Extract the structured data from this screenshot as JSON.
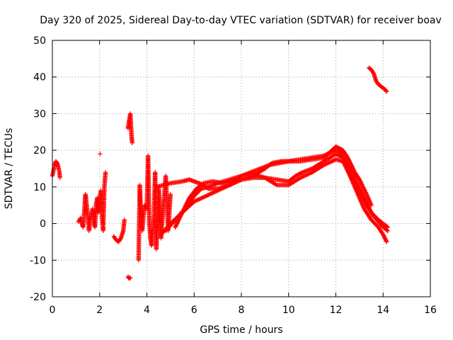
{
  "chart_data": {
    "type": "scatter",
    "title": "Day 320 of 2025, Sidereal Day-to-day VTEC variation (SDTVAR) for receiver boav",
    "xlabel": "GPS time / hours",
    "ylabel": "SDTVAR / TECUs",
    "xlim": [
      0,
      16
    ],
    "ylim": [
      -20,
      50
    ],
    "xticks": [
      0,
      2,
      4,
      6,
      8,
      10,
      12,
      14,
      16
    ],
    "yticks": [
      -20,
      -10,
      0,
      10,
      20,
      30,
      40,
      50
    ],
    "grid": true,
    "marker": "+",
    "color": "#ff0000",
    "series": [
      {
        "name": "cluster-0",
        "points": [
          [
            0.0,
            13
          ],
          [
            0.05,
            14.5
          ],
          [
            0.1,
            16
          ],
          [
            0.15,
            17
          ],
          [
            0.2,
            16.5
          ],
          [
            0.25,
            15.5
          ],
          [
            0.3,
            14
          ],
          [
            0.32,
            12.5
          ]
        ]
      },
      {
        "name": "cluster-1",
        "points": [
          [
            1.1,
            0.5
          ],
          [
            1.2,
            1.5
          ],
          [
            1.25,
            0
          ],
          [
            1.3,
            -1
          ],
          [
            1.35,
            3
          ],
          [
            1.4,
            8
          ],
          [
            1.45,
            5
          ],
          [
            1.5,
            2
          ],
          [
            1.55,
            -2
          ],
          [
            1.6,
            1
          ],
          [
            1.7,
            4
          ],
          [
            1.75,
            1
          ],
          [
            1.8,
            -1
          ],
          [
            1.85,
            5
          ],
          [
            1.9,
            7
          ],
          [
            1.95,
            3
          ],
          [
            2.0,
            6
          ],
          [
            2.05,
            9
          ],
          [
            2.1,
            2
          ],
          [
            2.15,
            -2
          ],
          [
            2.2,
            10
          ],
          [
            2.25,
            14
          ]
        ]
      },
      {
        "name": "cluster-1b",
        "points": [
          [
            2.02,
            19
          ]
        ]
      },
      {
        "name": "cluster-2",
        "points": [
          [
            2.6,
            -3.5
          ],
          [
            2.7,
            -4.5
          ],
          [
            2.8,
            -5
          ],
          [
            2.9,
            -4
          ],
          [
            3.0,
            -2
          ],
          [
            3.05,
            1
          ]
        ]
      },
      {
        "name": "cluster-3",
        "points": [
          [
            3.2,
            -14.5
          ],
          [
            3.25,
            -15
          ],
          [
            3.3,
            -14.8
          ]
        ]
      },
      {
        "name": "cluster-4",
        "points": [
          [
            3.2,
            26
          ],
          [
            3.25,
            28
          ],
          [
            3.3,
            30
          ],
          [
            3.35,
            24
          ],
          [
            3.38,
            22
          ]
        ]
      },
      {
        "name": "cluster-5",
        "points": [
          [
            3.65,
            -10
          ],
          [
            3.7,
            10.5
          ],
          [
            3.75,
            3
          ],
          [
            3.8,
            -2
          ],
          [
            3.9,
            5
          ],
          [
            4.0,
            4
          ],
          [
            4.05,
            18.5
          ],
          [
            4.1,
            1
          ],
          [
            4.15,
            -4
          ],
          [
            4.2,
            -6
          ],
          [
            4.3,
            2
          ],
          [
            4.35,
            14
          ],
          [
            4.4,
            -7
          ],
          [
            4.5,
            10
          ],
          [
            4.6,
            -4
          ],
          [
            4.7,
            5
          ],
          [
            4.8,
            13
          ],
          [
            4.9,
            -2
          ],
          [
            5.0,
            8
          ]
        ]
      },
      {
        "name": "band-a",
        "points": [
          [
            4.4,
            10
          ],
          [
            5.0,
            11
          ],
          [
            5.5,
            11.5
          ],
          [
            5.8,
            12
          ],
          [
            6.0,
            11.5
          ],
          [
            6.3,
            10.8
          ],
          [
            6.6,
            9.5
          ],
          [
            7.0,
            9.5
          ],
          [
            7.5,
            10.5
          ],
          [
            8.0,
            12
          ],
          [
            8.5,
            13
          ],
          [
            9.0,
            15
          ],
          [
            9.3,
            16.5
          ],
          [
            9.7,
            17
          ],
          [
            10.0,
            17
          ],
          [
            10.5,
            17.5
          ],
          [
            11.0,
            18
          ],
          [
            11.5,
            18.5
          ],
          [
            11.8,
            19.5
          ],
          [
            12.0,
            20
          ],
          [
            12.2,
            19.5
          ],
          [
            12.4,
            17
          ],
          [
            12.6,
            13
          ],
          [
            12.8,
            10
          ],
          [
            13.0,
            7
          ],
          [
            13.2,
            4
          ],
          [
            13.5,
            1
          ],
          [
            13.8,
            -1
          ],
          [
            14.0,
            -3
          ],
          [
            14.15,
            -5
          ]
        ]
      },
      {
        "name": "band-b",
        "points": [
          [
            4.6,
            -3
          ],
          [
            5.0,
            0
          ],
          [
            5.5,
            3
          ],
          [
            6.0,
            6
          ],
          [
            6.5,
            7.5
          ],
          [
            7.0,
            9
          ],
          [
            7.5,
            10.5
          ],
          [
            8.0,
            12
          ],
          [
            8.5,
            12.5
          ],
          [
            9.0,
            12.5
          ],
          [
            9.5,
            12
          ],
          [
            10.0,
            11.5
          ],
          [
            10.3,
            13
          ],
          [
            10.6,
            14
          ],
          [
            11.0,
            15
          ],
          [
            11.5,
            17
          ],
          [
            12.0,
            19
          ],
          [
            12.3,
            18
          ],
          [
            12.6,
            15
          ],
          [
            12.9,
            11
          ],
          [
            13.2,
            7
          ],
          [
            13.5,
            3
          ],
          [
            13.8,
            1
          ],
          [
            14.2,
            -1
          ]
        ]
      },
      {
        "name": "band-c",
        "points": [
          [
            4.8,
            -2
          ],
          [
            5.2,
            1
          ],
          [
            5.6,
            4
          ],
          [
            6.0,
            7.5
          ],
          [
            6.3,
            9.5
          ],
          [
            6.6,
            10
          ],
          [
            7.0,
            11
          ],
          [
            7.5,
            12
          ],
          [
            8.0,
            13
          ],
          [
            8.5,
            13.5
          ],
          [
            9.0,
            12.5
          ],
          [
            9.5,
            10.5
          ],
          [
            10.0,
            10.5
          ],
          [
            10.5,
            12.5
          ],
          [
            11.0,
            14
          ],
          [
            11.5,
            16
          ],
          [
            12.0,
            17.5
          ],
          [
            12.3,
            17
          ],
          [
            12.6,
            13
          ],
          [
            13.0,
            9
          ],
          [
            13.3,
            5
          ],
          [
            13.6,
            2
          ],
          [
            14.0,
            -1
          ],
          [
            14.2,
            -2
          ]
        ]
      },
      {
        "name": "band-d",
        "points": [
          [
            5.2,
            -1
          ],
          [
            5.5,
            3
          ],
          [
            5.8,
            7
          ],
          [
            6.1,
            9.5
          ],
          [
            6.4,
            11
          ],
          [
            6.8,
            11.5
          ],
          [
            7.2,
            11
          ],
          [
            7.6,
            11.5
          ],
          [
            8.0,
            13
          ],
          [
            8.4,
            14
          ],
          [
            8.8,
            15
          ],
          [
            9.2,
            16
          ],
          [
            9.6,
            16.5
          ],
          [
            10.0,
            17
          ],
          [
            10.5,
            17
          ],
          [
            11.0,
            17.5
          ],
          [
            11.5,
            18
          ],
          [
            12.0,
            21
          ],
          [
            12.3,
            20
          ],
          [
            12.5,
            18
          ],
          [
            12.8,
            14
          ],
          [
            13.0,
            12
          ],
          [
            13.3,
            8
          ],
          [
            13.5,
            5
          ]
        ]
      },
      {
        "name": "cluster-late",
        "points": [
          [
            13.4,
            42.5
          ],
          [
            13.5,
            42
          ],
          [
            13.6,
            41
          ],
          [
            13.7,
            39
          ],
          [
            13.8,
            38
          ],
          [
            13.9,
            37.5
          ],
          [
            14.0,
            37
          ],
          [
            14.1,
            36.5
          ],
          [
            14.15,
            36
          ]
        ]
      }
    ]
  }
}
